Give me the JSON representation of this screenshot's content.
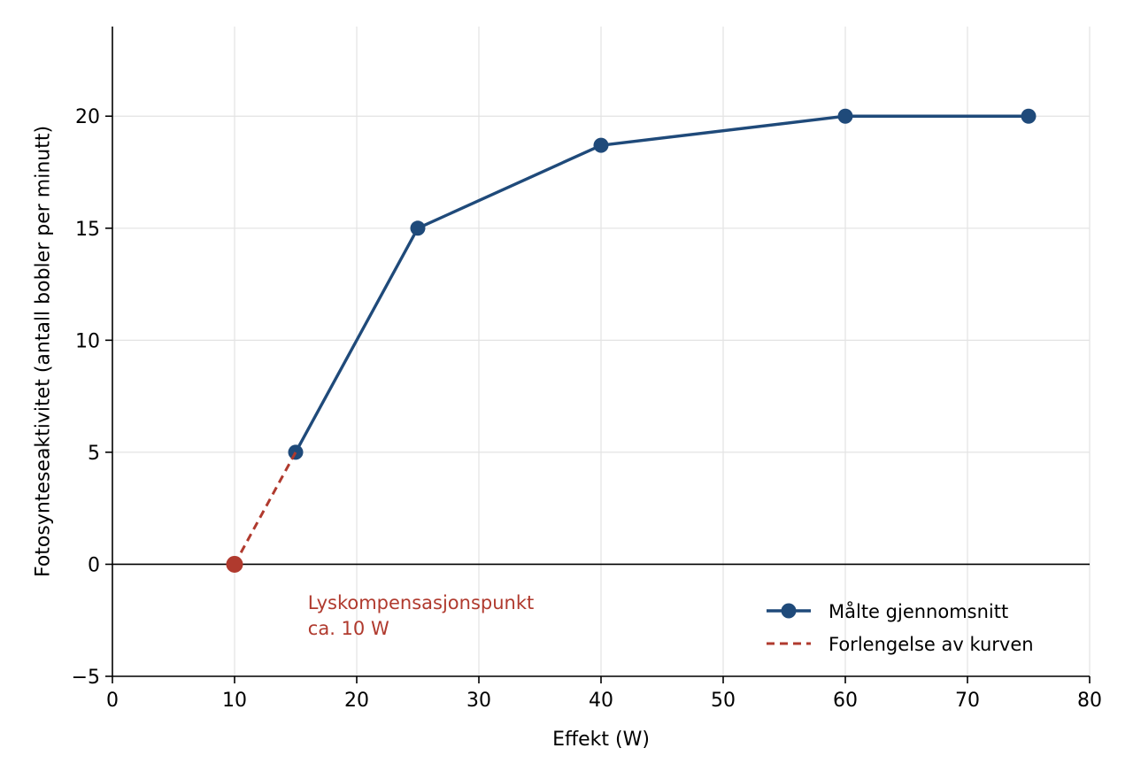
{
  "chart_data": {
    "type": "line",
    "xlabel": "Effekt (W)",
    "ylabel": "Fotosynteseaktivitet (antall bobler per minutt)",
    "xlim": [
      0,
      80
    ],
    "ylim": [
      -5,
      24
    ],
    "xticks": [
      0,
      10,
      20,
      30,
      40,
      50,
      60,
      70,
      80
    ],
    "yticks": [
      -5,
      0,
      5,
      10,
      15,
      20
    ],
    "xtick_labels": [
      "0",
      "10",
      "20",
      "30",
      "40",
      "50",
      "60",
      "70",
      "80"
    ],
    "ytick_labels": [
      "−5",
      "0",
      "5",
      "10",
      "15",
      "20"
    ],
    "grid": true,
    "zero_line": true,
    "legend_position": "lower-right",
    "series": [
      {
        "name": "Målte gjennomsnitt",
        "style": "solid-line-markers",
        "color": "#1f4a7a",
        "x": [
          15,
          25,
          40,
          60,
          75
        ],
        "y": [
          5,
          15,
          18.7,
          20,
          20
        ]
      },
      {
        "name": "Forlengelse av kurven",
        "style": "dashed",
        "color": "#b03a2e",
        "x": [
          10,
          15
        ],
        "y": [
          0,
          5
        ]
      }
    ],
    "highlight_point": {
      "x": 10,
      "y": 0,
      "color": "#b03a2e"
    },
    "annotation": {
      "lines": [
        "Lyskompensasjonspunkt",
        "ca. 10 W"
      ],
      "x": 16,
      "y": -2,
      "color": "#b03a2e"
    }
  }
}
